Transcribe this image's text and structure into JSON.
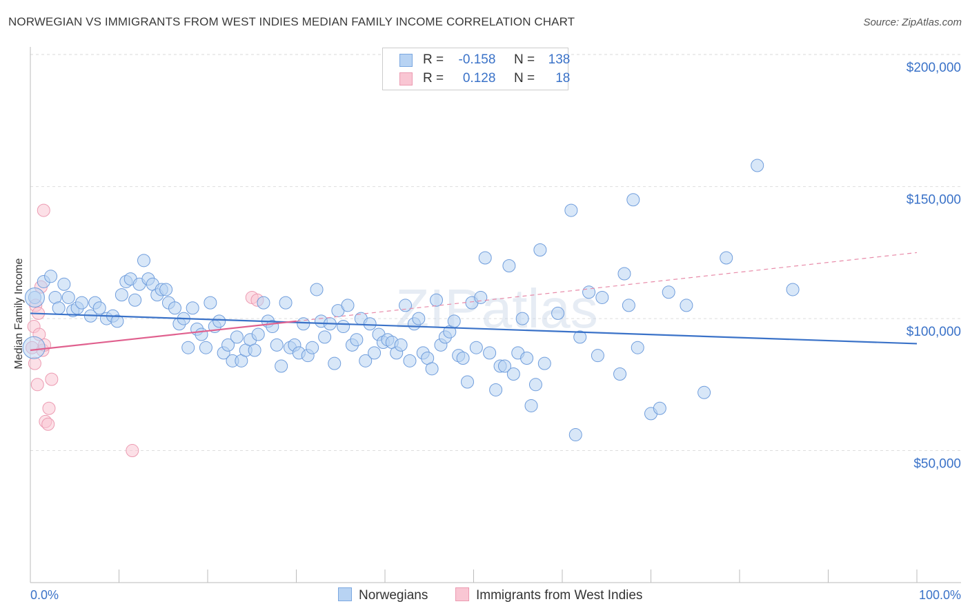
{
  "title": "NORWEGIAN VS IMMIGRANTS FROM WEST INDIES MEDIAN FAMILY INCOME CORRELATION CHART",
  "source": "Source: ZipAtlas.com",
  "watermark": "ZIPatlas",
  "legend": {
    "rows": [
      {
        "r_label": "R =",
        "r_value": "-0.158",
        "n_label": "N =",
        "n_value": "138",
        "fill": "#b8d3f3",
        "stroke": "#7aa7e0"
      },
      {
        "r_label": "R =",
        "r_value": "0.128",
        "n_label": "N =",
        "n_value": "18",
        "fill": "#f9c6d3",
        "stroke": "#ec9ab1"
      }
    ]
  },
  "bottom_legend": [
    {
      "label": "Norwegians",
      "fill": "#b8d3f3",
      "stroke": "#7aa7e0"
    },
    {
      "label": "Immigrants from West Indies",
      "fill": "#f9c6d3",
      "stroke": "#ec9ab1"
    }
  ],
  "chart_data": {
    "type": "scatter",
    "title": "NORWEGIAN VS IMMIGRANTS FROM WEST INDIES MEDIAN FAMILY INCOME CORRELATION CHART",
    "xlabel": "",
    "ylabel": "Median Family Income",
    "xlim": [
      0,
      100
    ],
    "ylim": [
      0,
      205000
    ],
    "x_tick_labels": [
      "0.0%",
      "100.0%"
    ],
    "y_ticks": [
      50000,
      100000,
      150000,
      200000
    ],
    "y_tick_labels": [
      "$50,000",
      "$100,000",
      "$150,000",
      "$200,000"
    ],
    "colors": {
      "blue": "#3a72c8",
      "pink": "#e0608e",
      "blue_fill": "#b8d3f3",
      "pink_fill": "#f9c6d3",
      "grid": "#dddddd",
      "axis_label": "#3a72c8"
    },
    "series": [
      {
        "name": "Norwegians",
        "r": -0.158,
        "n": 138,
        "trend": {
          "x0": 0,
          "y0": 102000,
          "x1": 100,
          "y1": 90500
        },
        "points": [
          [
            0.5,
            108000
          ],
          [
            1.5,
            114000
          ],
          [
            2.3,
            116000
          ],
          [
            2.8,
            108000
          ],
          [
            3.2,
            104000
          ],
          [
            3.8,
            113000
          ],
          [
            4.3,
            108000
          ],
          [
            4.8,
            103000
          ],
          [
            5.3,
            104000
          ],
          [
            5.8,
            106000
          ],
          [
            6.8,
            101000
          ],
          [
            7.3,
            106000
          ],
          [
            7.8,
            104000
          ],
          [
            8.6,
            100000
          ],
          [
            9.3,
            101000
          ],
          [
            9.8,
            99000
          ],
          [
            10.3,
            109000
          ],
          [
            10.8,
            114000
          ],
          [
            11.3,
            115000
          ],
          [
            11.8,
            107000
          ],
          [
            12.3,
            113000
          ],
          [
            12.8,
            122000
          ],
          [
            13.3,
            115000
          ],
          [
            13.8,
            113000
          ],
          [
            14.3,
            109000
          ],
          [
            14.8,
            111000
          ],
          [
            15.3,
            111000
          ],
          [
            15.6,
            106000
          ],
          [
            16.3,
            104000
          ],
          [
            16.8,
            98000
          ],
          [
            17.3,
            100000
          ],
          [
            17.8,
            89000
          ],
          [
            18.3,
            104000
          ],
          [
            18.8,
            96000
          ],
          [
            19.3,
            94000
          ],
          [
            19.8,
            89000
          ],
          [
            20.3,
            106000
          ],
          [
            20.8,
            97000
          ],
          [
            21.3,
            99000
          ],
          [
            21.8,
            87000
          ],
          [
            22.3,
            90000
          ],
          [
            22.8,
            84000
          ],
          [
            23.3,
            93000
          ],
          [
            23.8,
            84000
          ],
          [
            24.3,
            88000
          ],
          [
            24.8,
            92000
          ],
          [
            25.3,
            88000
          ],
          [
            25.7,
            94000
          ],
          [
            26.3,
            106000
          ],
          [
            26.8,
            99000
          ],
          [
            27.3,
            97000
          ],
          [
            27.8,
            90000
          ],
          [
            28.3,
            82000
          ],
          [
            28.8,
            106000
          ],
          [
            29.3,
            89000
          ],
          [
            29.8,
            90000
          ],
          [
            30.3,
            87000
          ],
          [
            30.8,
            98000
          ],
          [
            31.3,
            86000
          ],
          [
            31.8,
            89000
          ],
          [
            32.3,
            111000
          ],
          [
            32.8,
            99000
          ],
          [
            33.2,
            93000
          ],
          [
            33.8,
            98000
          ],
          [
            34.3,
            83000
          ],
          [
            34.7,
            103000
          ],
          [
            35.3,
            97000
          ],
          [
            35.8,
            105000
          ],
          [
            36.3,
            90000
          ],
          [
            36.8,
            92000
          ],
          [
            37.3,
            100000
          ],
          [
            37.8,
            84000
          ],
          [
            38.3,
            98000
          ],
          [
            38.8,
            87000
          ],
          [
            39.3,
            94000
          ],
          [
            39.8,
            91000
          ],
          [
            40.3,
            92000
          ],
          [
            40.8,
            91000
          ],
          [
            41.3,
            87000
          ],
          [
            41.8,
            90000
          ],
          [
            42.3,
            105000
          ],
          [
            42.8,
            84000
          ],
          [
            43.3,
            98000
          ],
          [
            43.8,
            100000
          ],
          [
            44.3,
            87000
          ],
          [
            44.8,
            85000
          ],
          [
            45.3,
            81000
          ],
          [
            45.8,
            107000
          ],
          [
            46.3,
            90000
          ],
          [
            46.8,
            93000
          ],
          [
            47.3,
            95000
          ],
          [
            47.8,
            99000
          ],
          [
            48.3,
            86000
          ],
          [
            48.8,
            85000
          ],
          [
            49.3,
            76000
          ],
          [
            49.8,
            106000
          ],
          [
            50.3,
            89000
          ],
          [
            50.8,
            108000
          ],
          [
            51.3,
            123000
          ],
          [
            51.8,
            87000
          ],
          [
            52.5,
            73000
          ],
          [
            53.0,
            82000
          ],
          [
            53.5,
            82000
          ],
          [
            54.0,
            120000
          ],
          [
            54.5,
            79000
          ],
          [
            55.0,
            87000
          ],
          [
            55.5,
            100000
          ],
          [
            56.0,
            85000
          ],
          [
            56.5,
            67000
          ],
          [
            57.0,
            75000
          ],
          [
            57.5,
            126000
          ],
          [
            58.0,
            83000
          ],
          [
            59.5,
            102000
          ],
          [
            61.0,
            141000
          ],
          [
            61.5,
            56000
          ],
          [
            62.0,
            93000
          ],
          [
            63.0,
            110000
          ],
          [
            64.0,
            86000
          ],
          [
            64.5,
            108000
          ],
          [
            66.5,
            79000
          ],
          [
            67.0,
            117000
          ],
          [
            67.5,
            105000
          ],
          [
            68.0,
            145000
          ],
          [
            68.5,
            89000
          ],
          [
            70.0,
            64000
          ],
          [
            71.0,
            66000
          ],
          [
            72.0,
            110000
          ],
          [
            74.0,
            105000
          ],
          [
            76.0,
            72000
          ],
          [
            78.5,
            123000
          ],
          [
            82.0,
            158000
          ],
          [
            86.0,
            111000
          ]
        ]
      },
      {
        "name": "Immigrants from West Indies",
        "r": 0.128,
        "n": 18,
        "trend": {
          "x0": 0,
          "y0": 88000,
          "x1": 30,
          "y1": 99000
        },
        "trend_dashed": {
          "x0": 30,
          "y0": 99000,
          "x1": 100,
          "y1": 125000
        },
        "points": [
          [
            0.2,
            89000
          ],
          [
            0.4,
            97000
          ],
          [
            0.5,
            83000
          ],
          [
            0.6,
            105000
          ],
          [
            0.8,
            75000
          ],
          [
            0.9,
            102000
          ],
          [
            1.0,
            94000
          ],
          [
            1.2,
            112000
          ],
          [
            1.4,
            88000
          ],
          [
            1.5,
            141000
          ],
          [
            1.6,
            90000
          ],
          [
            1.7,
            61000
          ],
          [
            2.0,
            60000
          ],
          [
            2.1,
            66000
          ],
          [
            2.4,
            77000
          ],
          [
            11.5,
            50000
          ],
          [
            25.0,
            108000
          ],
          [
            25.6,
            107000
          ]
        ]
      }
    ]
  }
}
